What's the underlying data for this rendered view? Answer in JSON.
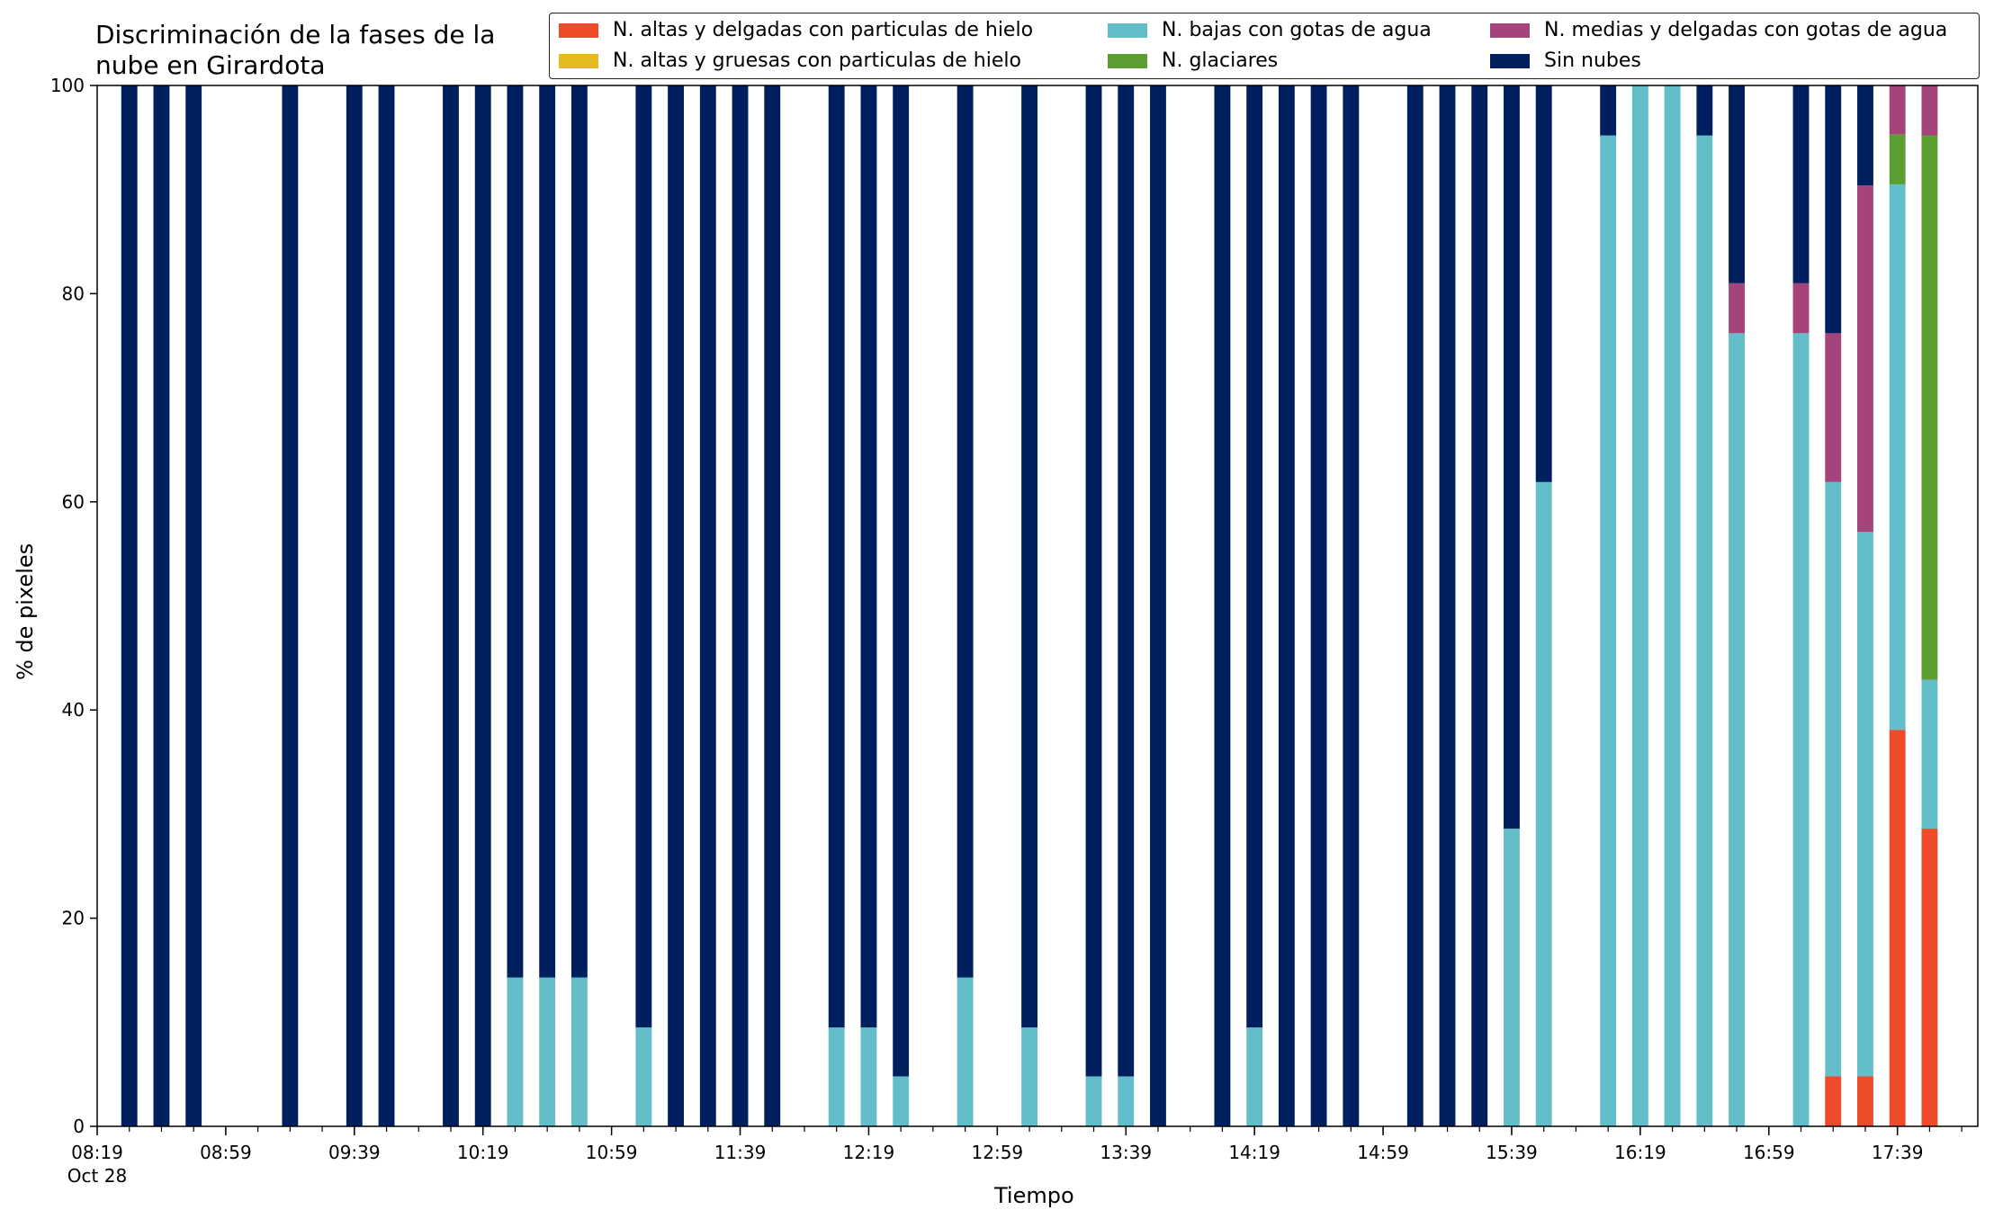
{
  "chart_data": {
    "type": "bar",
    "stacked": true,
    "title": "Discriminación de la fases de la\nnube en Girardota",
    "xlabel": "Tiempo",
    "ylabel": "% de pixeles",
    "ylim": [
      0,
      100
    ],
    "y_ticks": [
      0,
      20,
      40,
      60,
      80,
      100
    ],
    "x_axis": {
      "start": "08:19",
      "end": "18:04",
      "unit": "minutes",
      "date": "Oct 28"
    },
    "x_tick_labels": [
      "08:19",
      "08:59",
      "09:39",
      "10:19",
      "10:59",
      "11:39",
      "12:19",
      "12:59",
      "13:39",
      "14:19",
      "14:59",
      "15:39",
      "16:19",
      "16:59",
      "17:39"
    ],
    "x_tick_sublabel": "Oct 28",
    "minor_tick_step_minutes": 10,
    "bar_width_minutes": 5,
    "legend_position": "top-right",
    "grid": false,
    "x": [
      "08:29",
      "08:39",
      "08:49",
      "09:19",
      "09:39",
      "09:49",
      "10:09",
      "10:19",
      "10:29",
      "10:39",
      "10:49",
      "11:09",
      "11:19",
      "11:29",
      "11:39",
      "11:49",
      "12:09",
      "12:19",
      "12:29",
      "12:49",
      "13:09",
      "13:29",
      "13:39",
      "13:49",
      "14:09",
      "14:19",
      "14:29",
      "14:39",
      "14:49",
      "15:09",
      "15:19",
      "15:29",
      "15:39",
      "15:49",
      "16:09",
      "16:19",
      "16:29",
      "16:39",
      "16:49",
      "17:09",
      "17:19",
      "17:29",
      "17:39",
      "17:49"
    ],
    "series": [
      {
        "name": "N. altas y delgadas con particulas de hielo",
        "color": "#EE4B2B",
        "values": [
          0,
          0,
          0,
          0,
          0,
          0,
          0,
          0,
          0,
          0,
          0,
          0,
          0,
          0,
          0,
          0,
          0,
          0,
          0,
          0,
          0,
          0,
          0,
          0,
          0,
          0,
          0,
          0,
          0,
          0,
          0,
          0,
          0,
          0,
          0,
          0,
          0,
          0,
          0,
          0,
          4.8,
          4.8,
          38.1,
          28.6
        ]
      },
      {
        "name": "N. altas y gruesas con particulas de hielo",
        "color": "#E6B91E",
        "values": [
          0,
          0,
          0,
          0,
          0,
          0,
          0,
          0,
          0,
          0,
          0,
          0,
          0,
          0,
          0,
          0,
          0,
          0,
          0,
          0,
          0,
          0,
          0,
          0,
          0,
          0,
          0,
          0,
          0,
          0,
          0,
          0,
          0,
          0,
          0,
          0,
          0,
          0,
          0,
          0,
          0,
          0,
          0,
          0
        ]
      },
      {
        "name": "N. bajas con gotas de agua",
        "color": "#63BECA",
        "values": [
          0,
          0,
          0,
          0,
          0,
          0,
          0,
          0,
          14.3,
          14.3,
          14.3,
          9.5,
          0,
          0,
          0,
          0,
          9.5,
          9.5,
          4.8,
          14.3,
          9.5,
          4.8,
          4.8,
          0,
          0,
          9.5,
          0,
          0,
          0,
          0,
          0,
          0,
          28.6,
          61.9,
          95.2,
          100,
          100,
          95.2,
          76.2,
          76.2,
          57.1,
          52.3,
          52.4,
          14.3
        ]
      },
      {
        "name": "N. glaciares",
        "color": "#5C9E31",
        "values": [
          0,
          0,
          0,
          0,
          0,
          0,
          0,
          0,
          0,
          0,
          0,
          0,
          0,
          0,
          0,
          0,
          0,
          0,
          0,
          0,
          0,
          0,
          0,
          0,
          0,
          0,
          0,
          0,
          0,
          0,
          0,
          0,
          0,
          0,
          0,
          0,
          0,
          0,
          0,
          0,
          0,
          0,
          4.8,
          52.3
        ]
      },
      {
        "name": "N. medias y delgadas con gotas de agua",
        "color": "#A4447A",
        "values": [
          0,
          0,
          0,
          0,
          0,
          0,
          0,
          0,
          0,
          0,
          0,
          0,
          0,
          0,
          0,
          0,
          0,
          0,
          0,
          0,
          0,
          0,
          0,
          0,
          0,
          0,
          0,
          0,
          0,
          0,
          0,
          0,
          0,
          0,
          0,
          0,
          0,
          0,
          4.8,
          4.8,
          14.3,
          33.3,
          4.7,
          4.8
        ]
      },
      {
        "name": "Sin nubes",
        "color": "#001F5F",
        "values": [
          100,
          100,
          100,
          100,
          100,
          100,
          100,
          100,
          85.7,
          85.7,
          85.7,
          90.5,
          100,
          100,
          100,
          100,
          90.5,
          90.5,
          95.2,
          85.7,
          90.5,
          95.2,
          95.2,
          100,
          100,
          90.5,
          100,
          100,
          100,
          100,
          100,
          100,
          71.4,
          38.1,
          4.8,
          0,
          0,
          4.8,
          19.0,
          19.0,
          23.8,
          9.6,
          0,
          0
        ]
      }
    ]
  }
}
